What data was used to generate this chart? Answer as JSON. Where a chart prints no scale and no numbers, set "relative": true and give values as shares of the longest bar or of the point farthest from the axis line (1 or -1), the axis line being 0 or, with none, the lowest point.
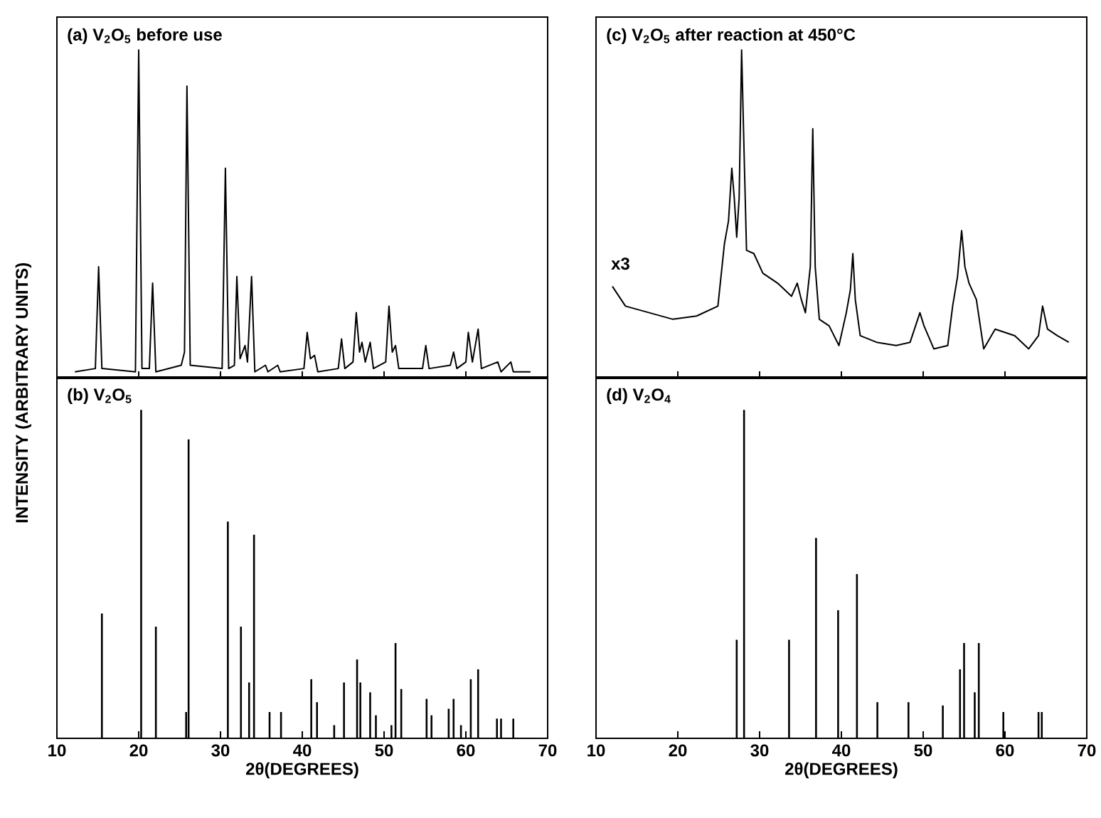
{
  "chart_data": [
    {
      "type": "line",
      "title": "(a) V$_{2}$O$_{5}$ before use",
      "ylabel": "INTENSITY (ARBITRARY UNITS)",
      "relative": true,
      "xlim": [
        10,
        70
      ],
      "xticks": [
        10,
        20,
        30,
        40,
        50,
        60,
        70
      ],
      "tick_labels": false,
      "color": "#000000",
      "x": [
        12.2,
        14.7,
        15.1,
        15.5,
        19.6,
        20.0,
        20.4,
        21.3,
        21.7,
        22.1,
        25.2,
        25.6,
        25.9,
        26.3,
        30.2,
        30.6,
        31.0,
        31.7,
        32.0,
        32.4,
        33.0,
        33.3,
        33.8,
        34.2,
        35.5,
        35.8,
        37.0,
        37.3,
        40.2,
        40.6,
        41.0,
        41.5,
        41.9,
        44.4,
        44.8,
        45.2,
        46.2,
        46.6,
        47.0,
        47.3,
        47.7,
        48.3,
        48.7,
        50.2,
        50.6,
        51.0,
        51.4,
        51.8,
        53.4,
        54.7,
        55.1,
        55.5,
        58.1,
        58.5,
        58.9,
        60.0,
        60.3,
        60.8,
        61.5,
        61.9,
        63.9,
        64.3,
        65.5,
        65.8,
        67.9
      ],
      "values": [
        0.02,
        0.03,
        0.34,
        0.03,
        0.02,
        1.0,
        0.03,
        0.03,
        0.29,
        0.02,
        0.04,
        0.08,
        0.89,
        0.04,
        0.03,
        0.64,
        0.03,
        0.04,
        0.31,
        0.06,
        0.1,
        0.05,
        0.31,
        0.02,
        0.04,
        0.02,
        0.04,
        0.02,
        0.03,
        0.14,
        0.06,
        0.07,
        0.02,
        0.03,
        0.12,
        0.03,
        0.05,
        0.2,
        0.08,
        0.11,
        0.05,
        0.11,
        0.03,
        0.05,
        0.22,
        0.08,
        0.1,
        0.03,
        0.03,
        0.03,
        0.1,
        0.03,
        0.04,
        0.08,
        0.03,
        0.05,
        0.14,
        0.05,
        0.15,
        0.03,
        0.05,
        0.02,
        0.05,
        0.02,
        0.02
      ]
    },
    {
      "type": "bar",
      "title": "(b) V$_{2}$O$_{5}$",
      "xlabel": "2θ(DEGREES)",
      "relative": true,
      "xlim": [
        10,
        70
      ],
      "xticks": [
        10,
        20,
        30,
        40,
        50,
        60,
        70
      ],
      "tick_labels": "x",
      "color": "#000000",
      "x": [
        15.5,
        20.3,
        22.1,
        25.8,
        26.1,
        30.9,
        32.5,
        33.5,
        34.1,
        36.0,
        37.4,
        41.1,
        41.8,
        43.9,
        45.1,
        46.7,
        47.1,
        48.3,
        49.0,
        50.9,
        51.4,
        52.1,
        55.2,
        55.8,
        57.9,
        58.5,
        59.4,
        60.6,
        61.5,
        63.8,
        64.3,
        65.8
      ],
      "values": [
        0.38,
        1.0,
        0.34,
        0.08,
        0.91,
        0.66,
        0.34,
        0.17,
        0.62,
        0.08,
        0.08,
        0.18,
        0.11,
        0.04,
        0.17,
        0.24,
        0.17,
        0.14,
        0.07,
        0.04,
        0.29,
        0.15,
        0.12,
        0.07,
        0.09,
        0.12,
        0.04,
        0.18,
        0.21,
        0.06,
        0.06,
        0.06
      ]
    },
    {
      "type": "line",
      "title": "(c) V$_{2}$O$_{5}$ after reaction at 450°C",
      "annotations": [
        "x3"
      ],
      "relative": true,
      "xlim": [
        10,
        70
      ],
      "xticks": [
        10,
        20,
        30,
        40,
        50,
        60,
        70
      ],
      "tick_labels": false,
      "color": "#000000",
      "x": [
        12.0,
        13.6,
        16.5,
        19.4,
        22.3,
        24.9,
        25.7,
        26.2,
        26.6,
        26.9,
        27.2,
        27.5,
        27.8,
        28.1,
        28.4,
        29.3,
        30.4,
        32.2,
        33.9,
        34.6,
        35.1,
        35.6,
        36.2,
        36.5,
        36.8,
        37.3,
        38.5,
        39.7,
        40.6,
        41.1,
        41.4,
        41.7,
        42.3,
        44.3,
        46.7,
        48.4,
        49.6,
        50.1,
        51.3,
        53.0,
        53.6,
        54.2,
        54.7,
        55.1,
        55.6,
        56.5,
        57.4,
        58.8,
        61.2,
        62.9,
        64.1,
        64.6,
        65.2,
        66.4,
        67.8
      ],
      "values": [
        0.28,
        0.22,
        0.2,
        0.18,
        0.19,
        0.22,
        0.41,
        0.48,
        0.64,
        0.55,
        0.43,
        0.55,
        1.0,
        0.69,
        0.39,
        0.38,
        0.32,
        0.29,
        0.25,
        0.29,
        0.24,
        0.2,
        0.34,
        0.76,
        0.34,
        0.18,
        0.16,
        0.1,
        0.2,
        0.27,
        0.38,
        0.24,
        0.13,
        0.11,
        0.1,
        0.11,
        0.2,
        0.16,
        0.09,
        0.1,
        0.22,
        0.31,
        0.45,
        0.34,
        0.29,
        0.24,
        0.09,
        0.15,
        0.13,
        0.09,
        0.13,
        0.22,
        0.15,
        0.13,
        0.11
      ]
    },
    {
      "type": "bar",
      "title": "(d) V$_{2}$O$_{4}$",
      "xlabel": "2θ(DEGREES)",
      "relative": true,
      "xlim": [
        10,
        70
      ],
      "xticks": [
        10,
        20,
        30,
        40,
        50,
        60,
        70
      ],
      "tick_labels": "x",
      "color": "#000000",
      "x": [
        27.2,
        28.1,
        33.6,
        36.9,
        39.6,
        41.9,
        44.4,
        48.2,
        52.4,
        54.5,
        55.0,
        56.3,
        56.8,
        59.8,
        64.1,
        64.5
      ],
      "values": [
        0.3,
        1.0,
        0.3,
        0.61,
        0.39,
        0.5,
        0.11,
        0.11,
        0.1,
        0.21,
        0.29,
        0.14,
        0.29,
        0.08,
        0.08,
        0.08
      ]
    }
  ]
}
